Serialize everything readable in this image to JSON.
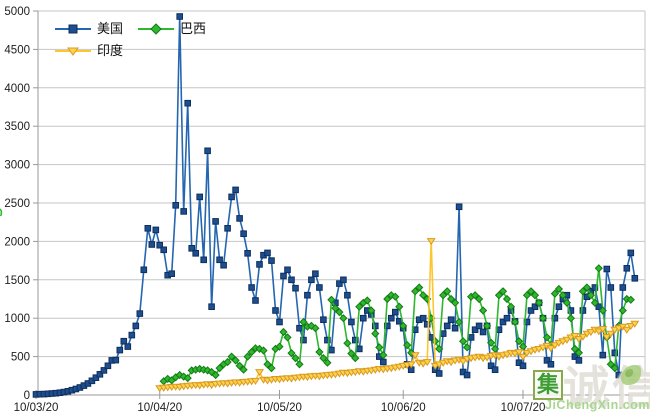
{
  "watermark": {
    "left_fragment": "0",
    "badge_char": "集",
    "ghost_text": "诚信",
    "site_text": "JiChengXin.com"
  },
  "chart_data": {
    "type": "line",
    "title": "",
    "xlabel": "",
    "ylabel": "",
    "grid": true,
    "legend_position": "top-left-inside",
    "x_axis": {
      "tick_labels": [
        "10/03/20",
        "10/04/20",
        "10/05/20",
        "10/06/20",
        "10/07/20"
      ],
      "tick_days": [
        0,
        31,
        61,
        92,
        122
      ]
    },
    "y_axis": {
      "min": 0,
      "max": 5000,
      "step": 500,
      "tick_labels": [
        "0",
        "500",
        "1000",
        "1500",
        "2000",
        "2500",
        "3000",
        "3500",
        "4000",
        "4500",
        "5000"
      ]
    },
    "colors": {
      "grid": "#c6c6c6",
      "axis": "#9a9a9a",
      "tick_text": "#202020"
    },
    "series": [
      {
        "id": "us",
        "name": "美国",
        "marker": "square",
        "color": "#2566b0",
        "marker_fill": "#1d4e8f",
        "marker_edge": "#0f2f5c",
        "start_day": 0,
        "values": [
          8,
          10,
          12,
          15,
          19,
          24,
          30,
          38,
          48,
          62,
          78,
          98,
          122,
          150,
          185,
          225,
          270,
          320,
          380,
          450,
          455,
          585,
          700,
          630,
          780,
          900,
          1060,
          1630,
          2170,
          1960,
          2150,
          1950,
          1890,
          1560,
          1580,
          2470,
          4928,
          2390,
          3800,
          1910,
          1845,
          2580,
          1760,
          3180,
          1150,
          2260,
          1760,
          1690,
          2170,
          2580,
          2670,
          2300,
          2100,
          1845,
          1400,
          1230,
          1700,
          1820,
          1850,
          1750,
          1100,
          950,
          1550,
          1630,
          1500,
          1390,
          870,
          715,
          1300,
          1500,
          1580,
          1400,
          980,
          715,
          585,
          1200,
          1450,
          1500,
          1300,
          950,
          715,
          600,
          1000,
          1100,
          1050,
          900,
          500,
          430,
          900,
          1000,
          1080,
          960,
          870,
          400,
          330,
          850,
          980,
          1000,
          920,
          750,
          330,
          280,
          800,
          900,
          980,
          870,
          2450,
          300,
          260,
          750,
          850,
          900,
          820,
          900,
          380,
          330,
          850,
          950,
          1000,
          1100,
          960,
          420,
          380,
          950,
          1100,
          1150,
          1200,
          1000,
          450,
          400,
          1000,
          1150,
          1250,
          1300,
          1100,
          500,
          450,
          1100,
          1280,
          1350,
          1400,
          1150,
          520,
          1640,
          1400,
          550,
          260,
          1400,
          1650,
          1850,
          1520
        ]
      },
      {
        "id": "brazil",
        "name": "巴西",
        "marker": "diamond",
        "color": "#2eb82e",
        "marker_fill": "#2eb82e",
        "marker_edge": "#157a15",
        "start_day": 32,
        "values": [
          180,
          210,
          190,
          230,
          260,
          240,
          220,
          320,
          330,
          340,
          330,
          320,
          300,
          260,
          350,
          400,
          430,
          500,
          450,
          380,
          330,
          500,
          560,
          610,
          600,
          580,
          400,
          350,
          600,
          630,
          820,
          750,
          545,
          480,
          400,
          950,
          890,
          900,
          870,
          560,
          480,
          420,
          1240,
          1130,
          1080,
          1000,
          675,
          540,
          480,
          1150,
          1200,
          1230,
          1100,
          800,
          620,
          520,
          1250,
          1300,
          1280,
          1150,
          900,
          650,
          550,
          1350,
          1400,
          1300,
          1250,
          1000,
          700,
          600,
          1300,
          1350,
          1250,
          1200,
          950,
          700,
          620,
          1280,
          1300,
          1250,
          1100,
          900,
          680,
          600,
          1300,
          1350,
          1250,
          1150,
          950,
          700,
          630,
          1300,
          1350,
          1300,
          1200,
          1000,
          750,
          650,
          1320,
          1380,
          1300,
          1200,
          1000,
          600,
          550,
          1350,
          1400,
          1300,
          1200,
          1650,
          1100,
          750,
          400,
          350,
          900,
          1100,
          1250,
          1240
        ]
      },
      {
        "id": "india",
        "name": "印度",
        "marker": "triangle-down",
        "color": "#fec62e",
        "marker_fill": "#fed34f",
        "marker_edge": "#d99a1f",
        "start_day": 31,
        "values": [
          90,
          95,
          100,
          105,
          110,
          105,
          115,
          120,
          125,
          130,
          125,
          135,
          140,
          130,
          145,
          150,
          155,
          150,
          160,
          165,
          160,
          170,
          175,
          180,
          185,
          300,
          200,
          190,
          200,
          210,
          205,
          215,
          220,
          215,
          225,
          230,
          240,
          235,
          245,
          250,
          245,
          255,
          260,
          265,
          270,
          280,
          290,
          285,
          295,
          300,
          310,
          305,
          315,
          320,
          330,
          340,
          335,
          345,
          350,
          360,
          370,
          380,
          390,
          400,
          520,
          420,
          410,
          430,
          2005,
          380,
          400,
          420,
          440,
          430,
          450,
          460,
          440,
          470,
          480,
          490,
          500,
          480,
          490,
          510,
          520,
          500,
          520,
          530,
          550,
          540,
          560,
          500,
          550,
          570,
          590,
          600,
          620,
          640,
          610,
          650,
          680,
          700,
          720,
          750,
          770,
          730,
          760,
          800,
          820,
          850,
          830,
          860,
          755,
          800,
          850,
          870,
          890,
          850,
          900,
          930
        ]
      }
    ]
  }
}
